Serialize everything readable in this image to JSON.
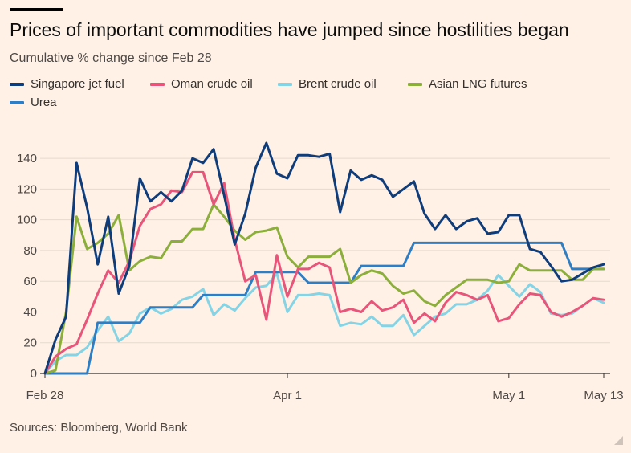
{
  "header": {
    "title": "Prices of important commodities have jumped since hostilities began",
    "subtitle": "Cumulative % change since Feb 28"
  },
  "footer": {
    "source": "Sources: Bloomberg, World Bank"
  },
  "chart_data": {
    "type": "line",
    "title": "Prices of important commodities have jumped since hostilities began",
    "subtitle": "Cumulative % change since Feb 28",
    "xlabel": "",
    "ylabel": "",
    "ylim": [
      0,
      150
    ],
    "yticks": [
      0,
      20,
      40,
      60,
      80,
      100,
      120,
      140
    ],
    "ytick_labels": [
      "0",
      "20",
      "40",
      "60",
      "80",
      "100",
      "120",
      "140"
    ],
    "x_units": "trading days since Feb 28",
    "xlim": [
      0,
      53
    ],
    "xticks": [
      0,
      23,
      44,
      53
    ],
    "xtick_labels": [
      "Feb 28",
      "Apr 1",
      "May 1",
      "May 13"
    ],
    "grid": "horizontal",
    "legend_position": "top-left",
    "series": [
      {
        "name": "Singapore jet fuel",
        "color": "#0f3c7a",
        "values": [
          0,
          22,
          37,
          137,
          108,
          71,
          102,
          52,
          70,
          127,
          112,
          118,
          112,
          119,
          140,
          137,
          146,
          116,
          84,
          104,
          134,
          150,
          130,
          127,
          142,
          142,
          141,
          143,
          105,
          132,
          126,
          129,
          126,
          115,
          120,
          125,
          104,
          94,
          103,
          94,
          99,
          101,
          91,
          92,
          103,
          103,
          81,
          79,
          70,
          60,
          61,
          65,
          69,
          71
        ]
      },
      {
        "name": "Oman crude oil",
        "color": "#e8557a",
        "values": [
          0,
          11,
          16,
          19,
          35,
          52,
          67,
          59,
          73,
          96,
          107,
          110,
          119,
          118,
          131,
          131,
          110,
          124,
          87,
          60,
          64,
          35,
          77,
          50,
          68,
          68,
          72,
          69,
          40,
          42,
          40,
          47,
          41,
          43,
          48,
          33,
          39,
          34,
          46,
          53,
          51,
          48,
          51,
          34,
          36,
          45,
          52,
          51,
          40,
          37,
          40,
          44,
          49,
          48
        ]
      },
      {
        "name": "Brent crude oil",
        "color": "#85d4e6",
        "values": [
          0,
          8,
          12,
          12,
          17,
          28,
          37,
          21,
          26,
          39,
          43,
          39,
          42,
          48,
          50,
          55,
          38,
          45,
          41,
          49,
          56,
          57,
          65,
          40,
          51,
          51,
          52,
          51,
          31,
          33,
          32,
          37,
          31,
          31,
          38,
          25,
          31,
          37,
          39,
          45,
          45,
          48,
          54,
          64,
          57,
          50,
          58,
          53,
          39,
          38,
          39,
          44,
          49,
          46
        ]
      },
      {
        "name": "Asian LNG futures",
        "color": "#8caf3c",
        "values": [
          0,
          2,
          40,
          102,
          81,
          85,
          91,
          103,
          67,
          73,
          76,
          75,
          86,
          86,
          94,
          94,
          110,
          102,
          93,
          87,
          92,
          93,
          95,
          76,
          69,
          76,
          76,
          76,
          81,
          59,
          64,
          67,
          65,
          57,
          52,
          54,
          47,
          44,
          51,
          56,
          61,
          61,
          61,
          59,
          60,
          71,
          67,
          67,
          67,
          67,
          61,
          61,
          68,
          68
        ]
      },
      {
        "name": "Urea",
        "color": "#2e7ec5",
        "values": [
          0,
          0,
          0,
          0,
          0,
          33,
          33,
          33,
          33,
          33,
          43,
          43,
          43,
          43,
          43,
          51,
          51,
          51,
          51,
          51,
          66,
          66,
          66,
          66,
          66,
          59,
          59,
          59,
          59,
          59,
          70,
          70,
          70,
          70,
          70,
          85,
          85,
          85,
          85,
          85,
          85,
          85,
          85,
          85,
          85,
          85,
          85,
          85,
          85,
          85,
          68,
          68,
          68,
          68
        ]
      }
    ]
  }
}
